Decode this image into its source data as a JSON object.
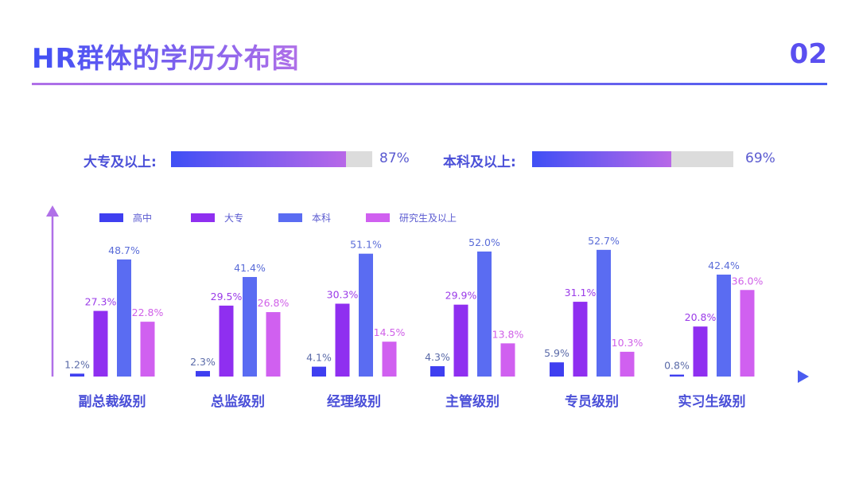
{
  "header": {
    "title": "HR群体的学历分布图",
    "page_number": "02"
  },
  "progress": [
    {
      "label": "大专及以上:",
      "value": 87,
      "value_text": "87%"
    },
    {
      "label": "本科及以上:",
      "value": 69,
      "value_text": "69%"
    }
  ],
  "chart_data": {
    "type": "bar",
    "categories": [
      "副总裁级别",
      "总监级别",
      "经理级别",
      "主管级别",
      "专员级别",
      "实习生级别"
    ],
    "series": [
      {
        "name": "高中",
        "color": "#3f3ff0",
        "label_color": "#5a6aa8",
        "values": [
          1.2,
          2.3,
          4.1,
          4.3,
          5.9,
          0.8
        ]
      },
      {
        "name": "大专",
        "color": "#8f2ff0",
        "label_color": "#9a3ae8",
        "values": [
          27.3,
          29.5,
          30.3,
          29.9,
          31.1,
          20.8
        ]
      },
      {
        "name": "本科",
        "color": "#5a6cf2",
        "label_color": "#5a6cd8",
        "values": [
          48.7,
          41.4,
          51.1,
          52.0,
          52.7,
          42.4
        ]
      },
      {
        "name": "研究生及以上",
        "color": "#d060f0",
        "label_color": "#d060e8",
        "values": [
          22.8,
          26.8,
          14.5,
          13.8,
          10.3,
          36.0
        ]
      }
    ],
    "value_suffix": "%",
    "ylim": [
      0,
      60
    ],
    "grid": false,
    "legend": "top"
  }
}
